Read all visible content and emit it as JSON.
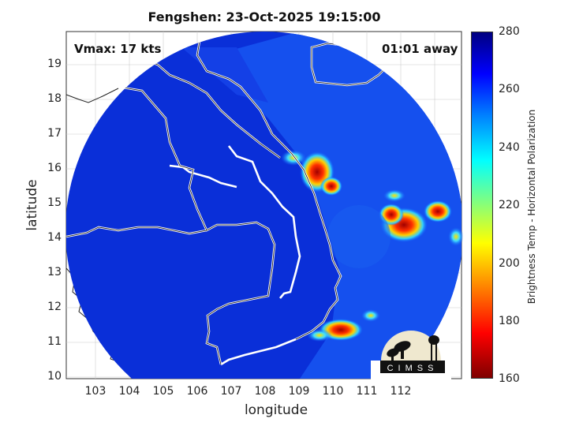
{
  "title": "Fengshen: 23-Oct-2025 19:15:00",
  "annotations": {
    "vmax": "Vmax: 17 kts",
    "time_away": "01:01 away"
  },
  "axes": {
    "xlabel": "longitude",
    "ylabel": "latitude",
    "xticks": [
      "103",
      "104",
      "105",
      "106",
      "107",
      "108",
      "109",
      "110",
      "111",
      "112"
    ],
    "yticks": [
      "10",
      "11",
      "12",
      "13",
      "14",
      "15",
      "16",
      "17",
      "18",
      "19"
    ]
  },
  "colorbar": {
    "label": "Brightness Temp - Horizontal Polarization",
    "ticks": [
      "160",
      "180",
      "200",
      "220",
      "240",
      "260",
      "280"
    ],
    "range": [
      160,
      280
    ]
  },
  "logo": {
    "text": "CIMSS"
  },
  "colors": {
    "background_field": "#0a2fd8",
    "cold_core": "#c01010",
    "coast": "#ffffff"
  }
}
